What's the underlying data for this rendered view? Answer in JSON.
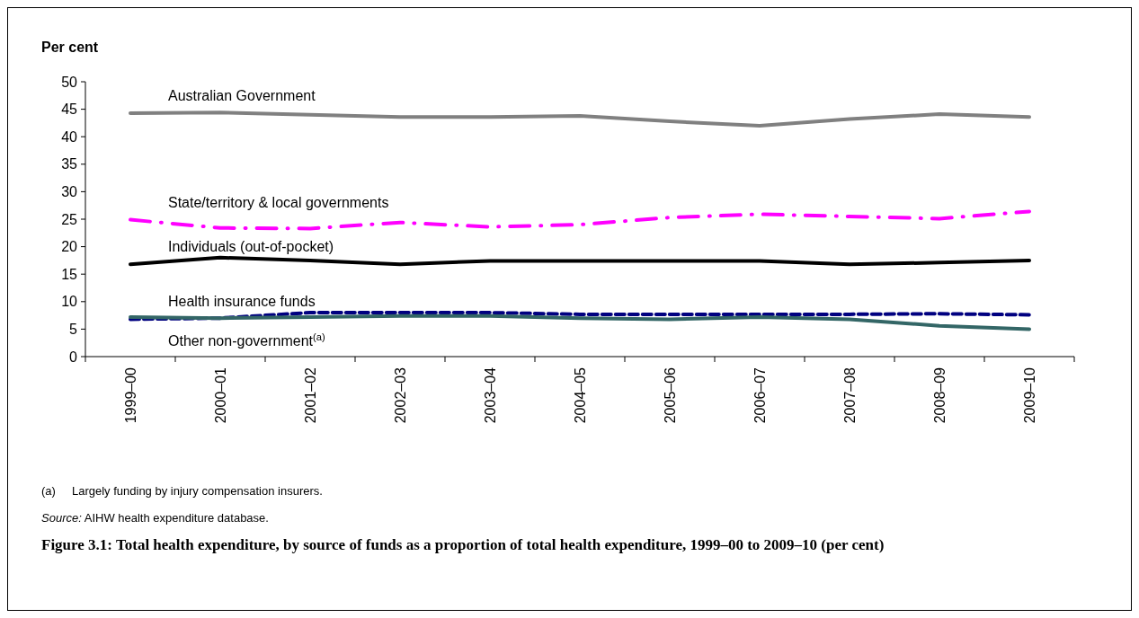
{
  "chart_data": {
    "type": "line",
    "title": "Figure 3.1: Total health expenditure, by source of funds as a proportion of total health expenditure, 1999–00 to 2009–10 (per cent)",
    "ylabel": "Per cent",
    "categories": [
      "1999–00",
      "2000–01",
      "2001–02",
      "2002–03",
      "2003–04",
      "2004–05",
      "2005–06",
      "2006–07",
      "2007–08",
      "2008–09",
      "2009–10"
    ],
    "ylim": [
      0,
      50
    ],
    "yticks": [
      0,
      5,
      10,
      15,
      20,
      25,
      30,
      35,
      40,
      45,
      50
    ],
    "grid": false,
    "legend": false,
    "marker": "none",
    "series": [
      {
        "name": "Australian Government",
        "color": "#808080",
        "line_style": "solid",
        "values": [
          44.3,
          44.4,
          44.0,
          43.6,
          43.6,
          43.8,
          42.8,
          42.0,
          43.2,
          44.1,
          43.6
        ]
      },
      {
        "name": "State/territory & local governments",
        "color": "#ff00ff",
        "line_style": "dashdot",
        "values": [
          24.9,
          23.4,
          23.3,
          24.4,
          23.6,
          24.0,
          25.3,
          25.9,
          25.5,
          25.1,
          26.4
        ]
      },
      {
        "name": "Individuals (out-of-pocket)",
        "color": "#000000",
        "line_style": "solid",
        "values": [
          16.8,
          18.0,
          17.5,
          16.8,
          17.4,
          17.4,
          17.4,
          17.4,
          16.8,
          17.1,
          17.5
        ]
      },
      {
        "name": "Health insurance funds",
        "color": "#000080",
        "line_style": "dashed",
        "values": [
          6.8,
          7.0,
          8.0,
          8.0,
          8.0,
          7.7,
          7.7,
          7.7,
          7.7,
          7.8,
          7.6
        ]
      },
      {
        "name": "Other non-government$^{(a)}$",
        "color": "#336666",
        "line_style": "solid",
        "values": [
          7.2,
          7.0,
          7.2,
          7.4,
          7.4,
          7.0,
          6.8,
          7.2,
          6.8,
          5.6,
          5.0
        ]
      }
    ],
    "annotations": [
      "(a)     Largely funding by injury compensation insurers.",
      "Source: AIHW health expenditure database."
    ]
  }
}
